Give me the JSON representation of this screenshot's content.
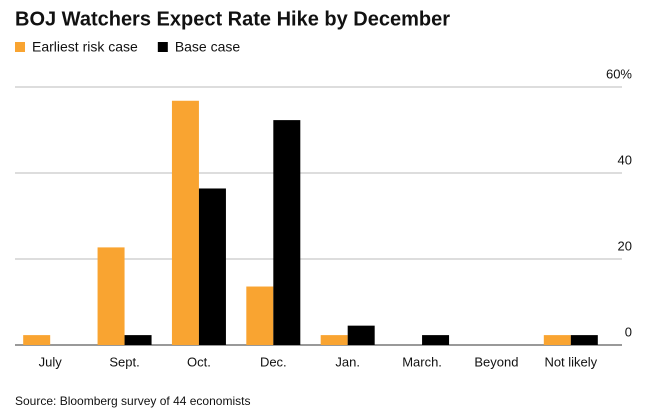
{
  "chart_data": {
    "type": "bar",
    "title": "BOJ Watchers Expect Rate Hike by December",
    "source": "Source: Bloomberg survey of 44 economists",
    "categories": [
      "July",
      "Sept.",
      "Oct.",
      "Dec.",
      "Jan.",
      "March.",
      "Beyond",
      "Not likely"
    ],
    "series": [
      {
        "name": "Earliest risk case",
        "color": "#f9a431",
        "values": [
          2.3,
          22.7,
          56.8,
          13.6,
          2.3,
          0,
          0,
          2.3
        ]
      },
      {
        "name": "Base case",
        "color": "#000000",
        "values": [
          0,
          2.3,
          36.4,
          52.3,
          4.5,
          2.3,
          0,
          2.3
        ]
      }
    ],
    "ylim": [
      0,
      60
    ],
    "yticks": [
      0,
      20,
      40,
      {
        "value": 60,
        "label": "60%"
      }
    ],
    "grid": true
  }
}
